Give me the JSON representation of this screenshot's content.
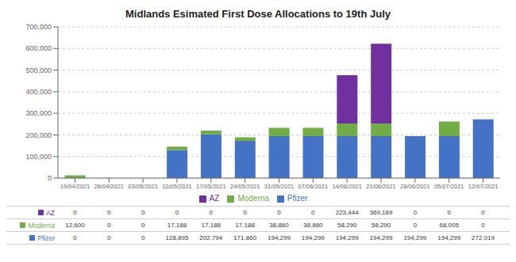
{
  "chart_data": {
    "type": "bar",
    "title": "Midlands Esimated First Dose Allocations to 19th July",
    "categories": [
      "19/04/2021",
      "26/04/2021",
      "03/05/2021",
      "10/05/2021",
      "17/05/2021",
      "24/05/2021",
      "31/05/2021",
      "07/06/2021",
      "14/06/2021",
      "21/06/2021",
      "28/06/2021",
      "05/07/2021",
      "12/07/2021"
    ],
    "series": [
      {
        "name": "Pfizer",
        "color": "#4472c4",
        "values": [
          0,
          0,
          0,
          128895,
          202794,
          171860,
          194299,
          194299,
          194299,
          194299,
          194299,
          194299,
          272019
        ],
        "value_labels": [
          "0",
          "0",
          "0",
          "128,895",
          "202,794",
          "171,860",
          "194,299",
          "194,299",
          "194,299",
          "194,299",
          "194,299",
          "194,299",
          "272,019"
        ]
      },
      {
        "name": "Moderna",
        "color": "#70ad47",
        "values": [
          12600,
          0,
          0,
          17188,
          17188,
          17188,
          38860,
          38860,
          58290,
          58290,
          0,
          68005,
          0
        ],
        "value_labels": [
          "12,600",
          "0",
          "0",
          "17,188",
          "17,188",
          "17,188",
          "38,860",
          "38,860",
          "58,290",
          "58,290",
          "0",
          "68,005",
          "0"
        ]
      },
      {
        "name": "AZ",
        "color": "#7030a0",
        "values": [
          0,
          0,
          0,
          0,
          0,
          0,
          0,
          0,
          223444,
          369169,
          0,
          0,
          0
        ],
        "value_labels": [
          "0",
          "0",
          "0",
          "0",
          "0",
          "0",
          "0",
          "0",
          "223,444",
          "369,169",
          "0",
          "0",
          "0"
        ]
      }
    ],
    "stacked": true,
    "ylim": [
      0,
      700000
    ],
    "yticks": [
      0,
      {
        "value": 100000,
        "label": "100,000"
      },
      {
        "value": 200000,
        "label": "200,000"
      },
      {
        "value": 300000,
        "label": "300,000"
      },
      {
        "value": 400000,
        "label": "400,000"
      },
      {
        "value": 500000,
        "label": "500,000"
      },
      {
        "value": 600000,
        "label": "600,000"
      },
      {
        "value": 700000,
        "label": "700,000"
      }
    ],
    "grid": true,
    "legend": "bottom"
  }
}
